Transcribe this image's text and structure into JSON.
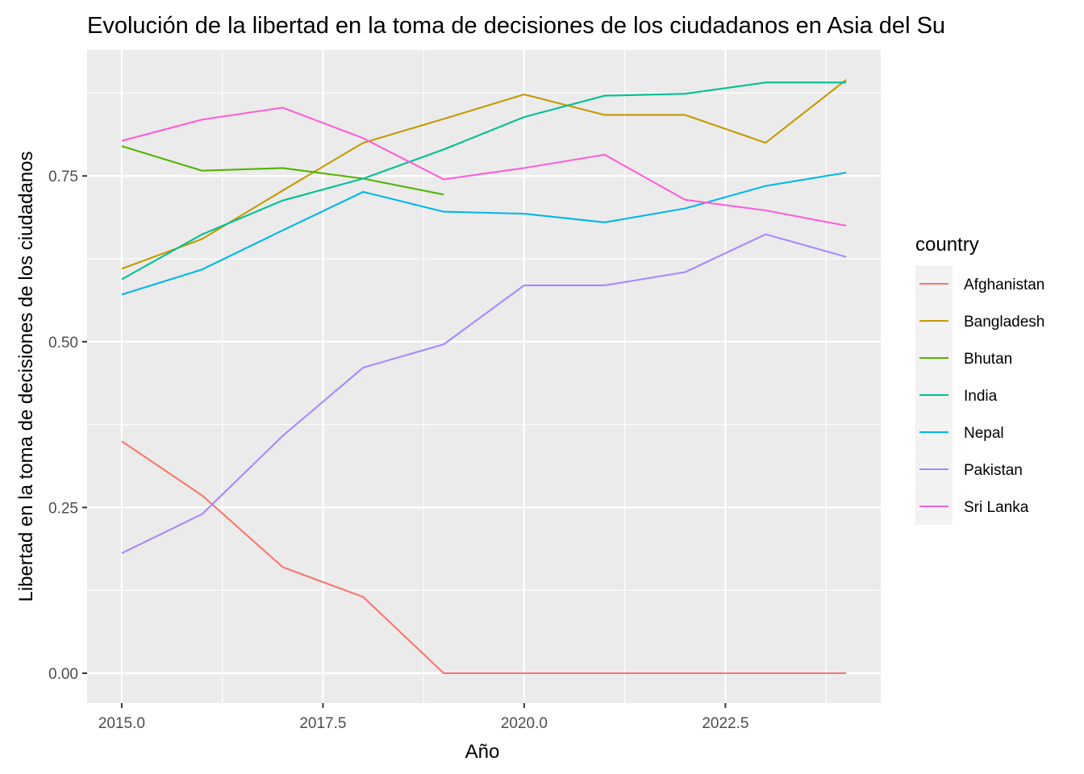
{
  "chart_data": {
    "type": "line",
    "title": "Evolución de la libertad en la toma de decisiones de los ciudadanos en Asia del Su",
    "xlabel": "Año",
    "ylabel": "Libertad en la toma de decisiones de los ciudadanos",
    "xlim": [
      2014.57,
      2024.43
    ],
    "ylim": [
      -0.045,
      0.94
    ],
    "x_ticks": [
      2015.0,
      2017.5,
      2020.0,
      2022.5
    ],
    "x_tick_labels": [
      "2015.0",
      "2017.5",
      "2020.0",
      "2022.5"
    ],
    "y_ticks": [
      0.0,
      0.25,
      0.5,
      0.75
    ],
    "y_tick_labels": [
      "0.00",
      "0.25",
      "0.50",
      "0.75"
    ],
    "grid": true,
    "legend": {
      "title": "country",
      "position": "right"
    },
    "series": [
      {
        "name": "Afghanistan",
        "color": "#F8766D",
        "x": [
          2015,
          2016,
          2017,
          2018,
          2019,
          2020,
          2021,
          2022,
          2023,
          2024
        ],
        "y": [
          0.35,
          0.268,
          0.16,
          0.115,
          0.0,
          0.0,
          0.0,
          0.0,
          0.0,
          0.0
        ]
      },
      {
        "name": "Bangladesh",
        "color": "#C49A00",
        "x": [
          2015,
          2016,
          2017,
          2018,
          2019,
          2020,
          2021,
          2022,
          2023,
          2024
        ],
        "y": [
          0.61,
          0.655,
          0.728,
          0.8,
          0.836,
          0.873,
          0.842,
          0.842,
          0.8,
          0.895
        ]
      },
      {
        "name": "Bhutan",
        "color": "#53B400",
        "x": [
          2015,
          2016,
          2017,
          2018,
          2019
        ],
        "y": [
          0.795,
          0.758,
          0.762,
          0.746,
          0.722
        ]
      },
      {
        "name": "India",
        "color": "#00C094",
        "x": [
          2015,
          2016,
          2017,
          2018,
          2019,
          2020,
          2021,
          2022,
          2023,
          2024
        ],
        "y": [
          0.594,
          0.662,
          0.713,
          0.746,
          0.79,
          0.839,
          0.871,
          0.874,
          0.891,
          0.891
        ]
      },
      {
        "name": "Nepal",
        "color": "#00B6EB",
        "x": [
          2015,
          2016,
          2017,
          2018,
          2019,
          2020,
          2021,
          2022,
          2023,
          2024
        ],
        "y": [
          0.571,
          0.609,
          0.668,
          0.726,
          0.696,
          0.693,
          0.68,
          0.701,
          0.735,
          0.755
        ]
      },
      {
        "name": "Pakistan",
        "color": "#A58AFF",
        "x": [
          2015,
          2016,
          2017,
          2018,
          2019,
          2020,
          2021,
          2022,
          2023,
          2024
        ],
        "y": [
          0.181,
          0.24,
          0.358,
          0.461,
          0.496,
          0.585,
          0.585,
          0.605,
          0.662,
          0.628
        ]
      },
      {
        "name": "Sri Lanka",
        "color": "#FB61D7",
        "x": [
          2015,
          2016,
          2017,
          2018,
          2019,
          2020,
          2021,
          2022,
          2023,
          2024
        ],
        "y": [
          0.803,
          0.835,
          0.853,
          0.807,
          0.745,
          0.762,
          0.782,
          0.714,
          0.698,
          0.675
        ]
      }
    ]
  }
}
